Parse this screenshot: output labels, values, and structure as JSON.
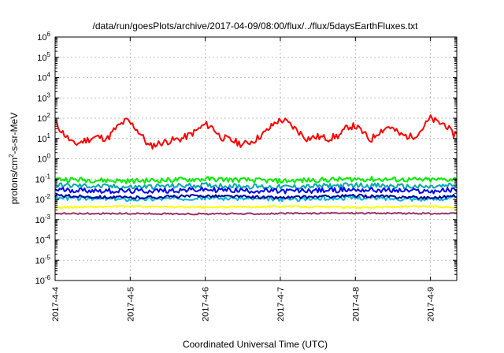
{
  "chart_data": {
    "type": "line",
    "title": "/data/run/goesPlots/archive/2017-04-09/08:00/flux/../flux/5daysEarthFluxes.txt",
    "xlabel": "Coordinated Universal Time (UTC)",
    "ylabel_base": "protons/cm",
    "ylabel_sup": "2",
    "ylabel_tail": "-s-sr-MeV",
    "yscale": "log",
    "ylim": [
      1e-06,
      1000000.0
    ],
    "xlim": [
      0,
      5.35
    ],
    "grid": true,
    "y_ticks": [
      {
        "exp": -6,
        "base": "10",
        "sup": "-6"
      },
      {
        "exp": -5,
        "base": "10",
        "sup": "-5"
      },
      {
        "exp": -4,
        "base": "10",
        "sup": "-4"
      },
      {
        "exp": -3,
        "base": "10",
        "sup": "-3"
      },
      {
        "exp": -2,
        "base": "10",
        "sup": "-2"
      },
      {
        "exp": -1,
        "base": "10",
        "sup": "-1"
      },
      {
        "exp": 0,
        "base": "10",
        "sup": "0"
      },
      {
        "exp": 1,
        "base": "10",
        "sup": "1"
      },
      {
        "exp": 2,
        "base": "10",
        "sup": "2"
      },
      {
        "exp": 3,
        "base": "10",
        "sup": "3"
      },
      {
        "exp": 4,
        "base": "10",
        "sup": "4"
      },
      {
        "exp": 5,
        "base": "10",
        "sup": "5"
      },
      {
        "exp": 6,
        "base": "10",
        "sup": "6"
      }
    ],
    "x_ticks": [
      {
        "day": 0,
        "label": "2017-4-4"
      },
      {
        "day": 1,
        "label": "2017-4-5"
      },
      {
        "day": 2,
        "label": "2017-4-6"
      },
      {
        "day": 3,
        "label": "2017-4-7"
      },
      {
        "day": 4,
        "label": "2017-4-8"
      },
      {
        "day": 5,
        "label": "2017-4-9"
      }
    ],
    "series": [
      {
        "color": "#ff0000",
        "noise": 0.35,
        "values": [
          [
            0,
            60
          ],
          [
            0.1,
            20
          ],
          [
            0.25,
            5
          ],
          [
            0.4,
            8
          ],
          [
            0.55,
            12
          ],
          [
            0.7,
            10
          ],
          [
            0.8,
            30
          ],
          [
            0.95,
            80
          ],
          [
            1.05,
            40
          ],
          [
            1.15,
            15
          ],
          [
            1.25,
            4
          ],
          [
            1.4,
            6
          ],
          [
            1.55,
            8
          ],
          [
            1.7,
            10
          ],
          [
            1.85,
            20
          ],
          [
            2.0,
            50
          ],
          [
            2.1,
            35
          ],
          [
            2.2,
            12
          ],
          [
            2.35,
            8
          ],
          [
            2.5,
            5
          ],
          [
            2.65,
            8
          ],
          [
            2.8,
            20
          ],
          [
            2.95,
            70
          ],
          [
            3.05,
            80
          ],
          [
            3.2,
            30
          ],
          [
            3.35,
            10
          ],
          [
            3.5,
            12
          ],
          [
            3.65,
            10
          ],
          [
            3.8,
            15
          ],
          [
            3.9,
            40
          ],
          [
            4.0,
            40
          ],
          [
            4.1,
            20
          ],
          [
            4.2,
            8
          ],
          [
            4.3,
            20
          ],
          [
            4.45,
            40
          ],
          [
            4.6,
            15
          ],
          [
            4.75,
            12
          ],
          [
            4.85,
            20
          ],
          [
            5.0,
            100
          ],
          [
            5.1,
            60
          ],
          [
            5.2,
            50
          ],
          [
            5.3,
            15
          ],
          [
            5.35,
            20
          ]
        ]
      },
      {
        "color": "#00ee00",
        "noise": 0.25,
        "values": [
          [
            0,
            0.1
          ],
          [
            1,
            0.08
          ],
          [
            2,
            0.1
          ],
          [
            3,
            0.08
          ],
          [
            4,
            0.1
          ],
          [
            5,
            0.09
          ],
          [
            5.35,
            0.1
          ]
        ]
      },
      {
        "color": "#00aaaa",
        "noise": 0.25,
        "values": [
          [
            0,
            0.05
          ],
          [
            1,
            0.04
          ],
          [
            2,
            0.05
          ],
          [
            3,
            0.04
          ],
          [
            4,
            0.05
          ],
          [
            5,
            0.04
          ],
          [
            5.35,
            0.05
          ]
        ]
      },
      {
        "color": "#0000ff",
        "noise": 0.25,
        "values": [
          [
            0,
            0.03
          ],
          [
            1,
            0.025
          ],
          [
            2,
            0.03
          ],
          [
            3,
            0.025
          ],
          [
            4,
            0.03
          ],
          [
            5,
            0.025
          ],
          [
            5.35,
            0.03
          ]
        ]
      },
      {
        "color": "#00b8d8",
        "noise": 0.2,
        "values": [
          [
            0,
            0.012
          ],
          [
            1,
            0.01
          ],
          [
            2,
            0.012
          ],
          [
            3,
            0.01
          ],
          [
            4,
            0.012
          ],
          [
            5,
            0.01
          ],
          [
            5.35,
            0.012
          ]
        ]
      },
      {
        "color": "#000099",
        "noise": 0.15,
        "values": [
          [
            0,
            0.015
          ],
          [
            1,
            0.012
          ],
          [
            2,
            0.015
          ],
          [
            3,
            0.012
          ],
          [
            4,
            0.015
          ],
          [
            5,
            0.012
          ],
          [
            5.35,
            0.015
          ]
        ]
      },
      {
        "color": "#ffff00",
        "noise": 0.08,
        "values": [
          [
            0,
            0.004
          ],
          [
            1,
            0.0045
          ],
          [
            2,
            0.004
          ],
          [
            3,
            0.0045
          ],
          [
            4,
            0.004
          ],
          [
            5,
            0.0045
          ],
          [
            5.35,
            0.004
          ]
        ]
      },
      {
        "color": "#993366",
        "noise": 0.07,
        "values": [
          [
            0,
            0.002
          ],
          [
            1,
            0.002
          ],
          [
            2,
            0.0019
          ],
          [
            3,
            0.002
          ],
          [
            4,
            0.0021
          ],
          [
            5,
            0.002
          ],
          [
            5.35,
            0.002
          ]
        ]
      }
    ]
  }
}
